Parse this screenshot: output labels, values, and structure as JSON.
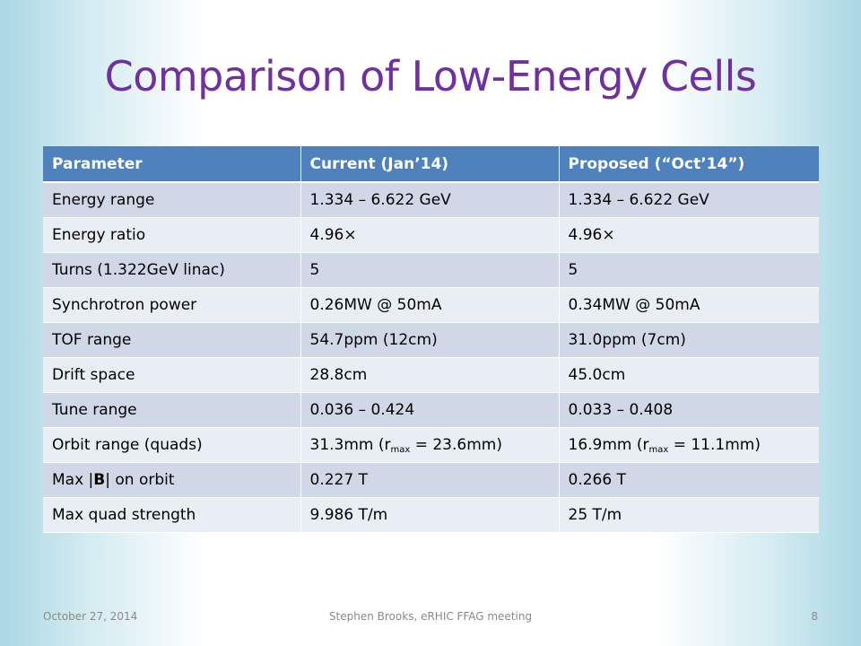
{
  "slide": {
    "title": "Comparison of Low-Energy Cells"
  },
  "table": {
    "headers": [
      "Parameter",
      "Current (Jan’14)",
      "Proposed (“Oct’14”)"
    ],
    "rows": [
      [
        "Energy range",
        "1.334 – 6.622 GeV",
        "1.334 – 6.622 GeV"
      ],
      [
        "Energy ratio",
        "4.96×",
        "4.96×"
      ],
      [
        "Turns (1.322GeV linac)",
        "5",
        "5"
      ],
      [
        "Synchrotron power",
        "0.26MW @ 50mA",
        "0.34MW @ 50mA"
      ],
      [
        "TOF range",
        "54.7ppm (12cm)",
        "31.0ppm (7cm)"
      ],
      [
        "Drift space",
        "28.8cm",
        "45.0cm"
      ],
      [
        "Tune range",
        "0.036 – 0.424",
        "0.033 – 0.408"
      ]
    ],
    "orbit_row": {
      "label": "Orbit range (quads)",
      "current_pre": "31.3mm (r",
      "current_sub": "max",
      "current_post": " = 23.6mm)",
      "proposed_pre": "16.9mm (r",
      "proposed_sub": "max",
      "proposed_post": " = 11.1mm)"
    },
    "b_row": {
      "label_pre": "Max |",
      "label_bold": "B",
      "label_post": "| on orbit",
      "current": "0.227 T",
      "proposed": "0.266 T"
    },
    "quad_row": {
      "label": "Max quad strength",
      "current": "9.986 T/m",
      "proposed": "25 T/m"
    }
  },
  "footer": {
    "date": "October 27, 2014",
    "center": "Stephen Brooks, eRHIC FFAG meeting",
    "page": "8"
  },
  "colors": {
    "title": "#7030a0",
    "header_bg": "#4f81bd",
    "row_dark": "#d0d8e8",
    "row_light": "#e9edf4"
  }
}
